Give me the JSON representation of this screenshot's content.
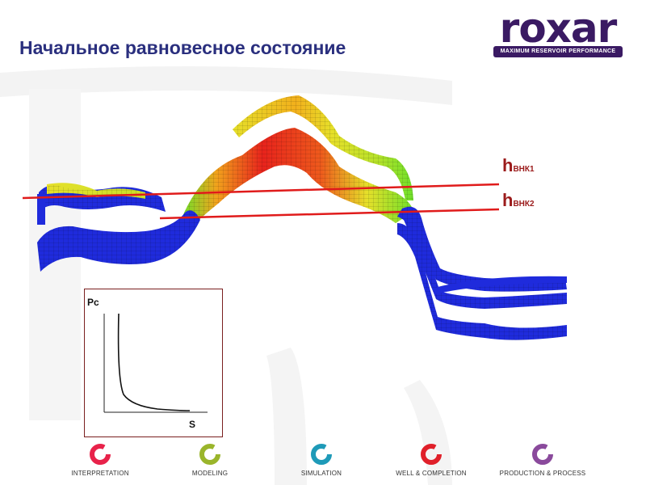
{
  "slide": {
    "title": "Начальное равновесное состояние"
  },
  "logo": {
    "wordmark": "roxar",
    "tagline": "MAXIMUM RESERVOIR PERFORMANCE",
    "color": "#3a1a63"
  },
  "labels": {
    "h1_main": "h",
    "h1_sub": "ВНК1",
    "h2_main": "h",
    "h2_sub": "ВНК2"
  },
  "pc_chart": {
    "y_label": "Pc",
    "x_label": "S"
  },
  "footer": {
    "items": [
      {
        "label": "INTERPRETATION",
        "color": "#e8224a",
        "icon": "interpretation-cycle-icon"
      },
      {
        "label": "MODELING",
        "color": "#9ab52b",
        "icon": "modeling-cycle-icon"
      },
      {
        "label": "SIMULATION",
        "color": "#1e9ab8",
        "icon": "simulation-cycle-icon"
      },
      {
        "label": "WELL & COMPLETION",
        "color": "#e0202a",
        "icon": "well-completion-cycle-icon"
      },
      {
        "label": "PRODUCTION & PROCESS",
        "color": "#8a4a9c",
        "icon": "production-process-cycle-icon"
      }
    ]
  },
  "colors": {
    "title": "#2a2f7e",
    "water": "#1f2bdc",
    "oil_high": "#e8231c",
    "oil_mid": "#f2a21c",
    "oil_low": "#e6e02a",
    "transition": "#7ee02a",
    "contact_line": "#e01b1b"
  }
}
